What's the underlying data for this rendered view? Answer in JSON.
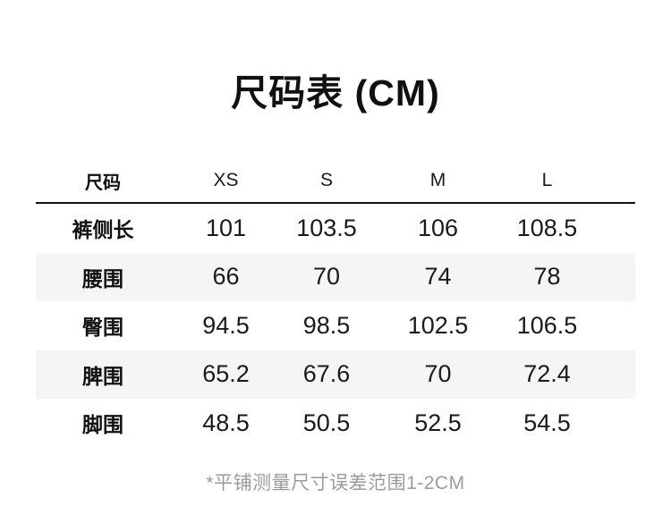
{
  "page": {
    "title": "尺码表 (CM)",
    "footnote": "*平铺测量尺寸误差范围1-2CM"
  },
  "size_table": {
    "columns": [
      "尺码",
      "XS",
      "S",
      "M",
      "L"
    ],
    "rows": [
      {
        "label": "裤侧长",
        "values": [
          "101",
          "103.5",
          "106",
          "108.5"
        ]
      },
      {
        "label": "腰围",
        "values": [
          "66",
          "70",
          "74",
          "78"
        ]
      },
      {
        "label": "臀围",
        "values": [
          "94.5",
          "98.5",
          "102.5",
          "106.5"
        ]
      },
      {
        "label": "脾围",
        "values": [
          "65.2",
          "67.6",
          "70",
          "72.4"
        ]
      },
      {
        "label": "脚围",
        "values": [
          "48.5",
          "50.5",
          "52.5",
          "54.5"
        ]
      }
    ]
  },
  "colors": {
    "background": "#ffffff",
    "text": "#1a1a1a",
    "stripe": "#f5f5f5",
    "divider": "#111111",
    "footnote_text": "#9b9b9b"
  }
}
